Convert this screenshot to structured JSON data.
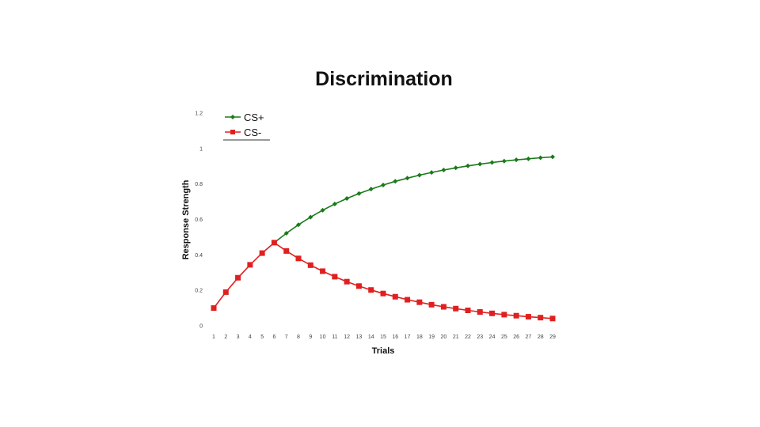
{
  "chart_data": {
    "type": "line",
    "title": "Discrimination",
    "xlabel": "Trials",
    "ylabel": "Response Strength",
    "x": [
      1,
      2,
      3,
      4,
      5,
      6,
      7,
      8,
      9,
      10,
      11,
      12,
      13,
      14,
      15,
      16,
      17,
      18,
      19,
      20,
      21,
      22,
      23,
      24,
      25,
      26,
      27,
      28,
      29
    ],
    "ylim": [
      0,
      1.2
    ],
    "yticks": [
      "0",
      "0.2",
      "0.4",
      "0.6",
      "0.8",
      "1",
      "1.2"
    ],
    "series": [
      {
        "name": "CS+",
        "color": "#1a7a1a",
        "marker": "diamond",
        "x": [
          6,
          7,
          8,
          9,
          10,
          11,
          12,
          13,
          14,
          15,
          16,
          17,
          18,
          19,
          20,
          21,
          22,
          23,
          24,
          25,
          26,
          27,
          28,
          29
        ],
        "values": [
          0.469,
          0.522,
          0.57,
          0.613,
          0.652,
          0.687,
          0.718,
          0.746,
          0.771,
          0.794,
          0.815,
          0.833,
          0.85,
          0.865,
          0.879,
          0.891,
          0.902,
          0.912,
          0.921,
          0.929,
          0.936,
          0.942,
          0.948,
          0.953
        ]
      },
      {
        "name": "CS-",
        "color": "#e02020",
        "marker": "square",
        "x": [
          1,
          2,
          3,
          4,
          5,
          6,
          7,
          8,
          9,
          10,
          11,
          12,
          13,
          14,
          15,
          16,
          17,
          18,
          19,
          20,
          21,
          22,
          23,
          24,
          25,
          26,
          27,
          28,
          29
        ],
        "values": [
          0.1,
          0.19,
          0.271,
          0.344,
          0.41,
          0.469,
          0.422,
          0.38,
          0.342,
          0.308,
          0.277,
          0.249,
          0.224,
          0.202,
          0.182,
          0.164,
          0.147,
          0.133,
          0.119,
          0.107,
          0.097,
          0.087,
          0.078,
          0.07,
          0.063,
          0.057,
          0.051,
          0.046,
          0.041
        ]
      }
    ],
    "legend_position": "top-left",
    "grid": false
  }
}
